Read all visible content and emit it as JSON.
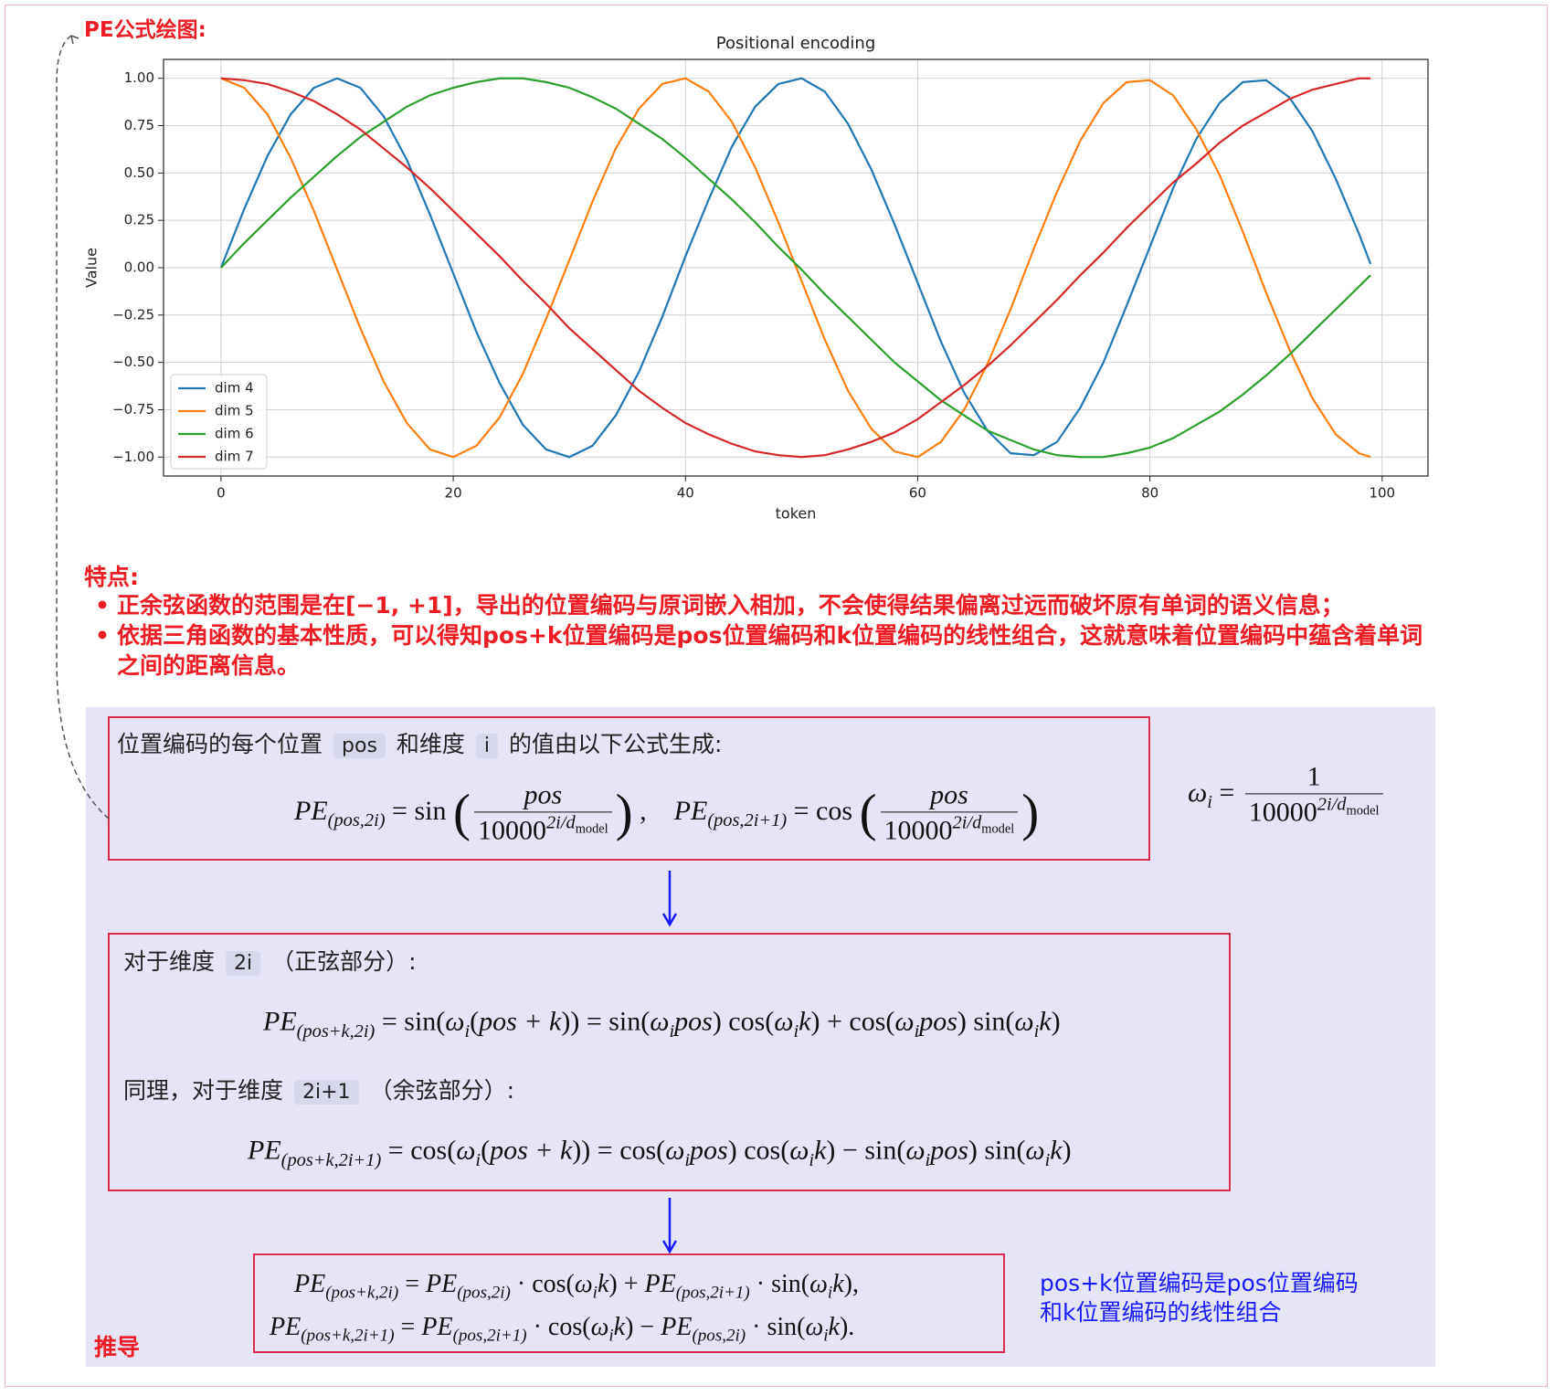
{
  "header": {
    "title": "PE公式绘图:"
  },
  "chart_data": {
    "type": "line",
    "title": "Positional encoding",
    "xlabel": "token",
    "ylabel": "Value",
    "x": [
      0,
      2,
      4,
      6,
      8,
      10,
      12,
      14,
      16,
      18,
      20,
      22,
      24,
      26,
      28,
      30,
      32,
      34,
      36,
      38,
      40,
      42,
      44,
      46,
      48,
      50,
      52,
      54,
      56,
      58,
      60,
      62,
      64,
      66,
      68,
      70,
      72,
      74,
      76,
      78,
      80,
      82,
      84,
      86,
      88,
      90,
      92,
      94,
      96,
      98,
      99
    ],
    "series": [
      {
        "name": "dim 4",
        "color": "#1f77b4",
        "values": [
          0,
          0.31,
          0.59,
          0.81,
          0.95,
          1.0,
          0.95,
          0.8,
          0.57,
          0.28,
          -0.03,
          -0.34,
          -0.61,
          -0.83,
          -0.96,
          -1.0,
          -0.94,
          -0.78,
          -0.55,
          -0.26,
          0.06,
          0.36,
          0.64,
          0.85,
          0.97,
          1.0,
          0.93,
          0.76,
          0.52,
          0.23,
          -0.08,
          -0.39,
          -0.66,
          -0.86,
          -0.98,
          -0.99,
          -0.92,
          -0.74,
          -0.5,
          -0.2,
          0.11,
          0.42,
          0.68,
          0.87,
          0.98,
          0.99,
          0.9,
          0.72,
          0.47,
          0.18,
          0.02
        ]
      },
      {
        "name": "dim 5",
        "color": "#ff7f0e",
        "values": [
          1,
          0.95,
          0.81,
          0.58,
          0.3,
          -0.01,
          -0.32,
          -0.6,
          -0.82,
          -0.96,
          -1.0,
          -0.94,
          -0.79,
          -0.56,
          -0.27,
          0.04,
          0.35,
          0.63,
          0.84,
          0.97,
          1.0,
          0.93,
          0.77,
          0.53,
          0.24,
          -0.07,
          -0.38,
          -0.65,
          -0.85,
          -0.97,
          -1.0,
          -0.92,
          -0.75,
          -0.51,
          -0.22,
          0.1,
          0.4,
          0.67,
          0.87,
          0.98,
          0.99,
          0.91,
          0.73,
          0.49,
          0.19,
          -0.13,
          -0.43,
          -0.69,
          -0.88,
          -0.98,
          -1.0
        ]
      },
      {
        "name": "dim 6",
        "color": "#2ca02c",
        "values": [
          0,
          0.13,
          0.25,
          0.37,
          0.48,
          0.59,
          0.69,
          0.77,
          0.85,
          0.91,
          0.95,
          0.98,
          1.0,
          1.0,
          0.98,
          0.95,
          0.9,
          0.84,
          0.76,
          0.68,
          0.58,
          0.47,
          0.36,
          0.24,
          0.11,
          -0.01,
          -0.14,
          -0.26,
          -0.38,
          -0.5,
          -0.6,
          -0.7,
          -0.78,
          -0.86,
          -0.91,
          -0.96,
          -0.99,
          -1.0,
          -1.0,
          -0.98,
          -0.95,
          -0.9,
          -0.83,
          -0.76,
          -0.67,
          -0.57,
          -0.46,
          -0.34,
          -0.22,
          -0.1,
          -0.04
        ]
      },
      {
        "name": "dim 7",
        "color": "#d62728",
        "values": [
          1,
          0.99,
          0.97,
          0.93,
          0.88,
          0.81,
          0.73,
          0.63,
          0.53,
          0.42,
          0.3,
          0.18,
          0.06,
          -0.07,
          -0.19,
          -0.32,
          -0.43,
          -0.54,
          -0.65,
          -0.74,
          -0.82,
          -0.88,
          -0.93,
          -0.97,
          -0.99,
          -1.0,
          -0.99,
          -0.96,
          -0.92,
          -0.87,
          -0.8,
          -0.71,
          -0.62,
          -0.52,
          -0.41,
          -0.29,
          -0.17,
          -0.04,
          0.08,
          0.21,
          0.33,
          0.45,
          0.55,
          0.66,
          0.75,
          0.82,
          0.89,
          0.94,
          0.97,
          1.0,
          1.0
        ]
      }
    ],
    "xlim": [
      -4.95,
      103.95
    ],
    "ylim": [
      -1.1,
      1.1
    ],
    "xticks": [
      0,
      20,
      40,
      60,
      80,
      100
    ],
    "yticks": [
      {
        "value": -1,
        "label": "−1.00"
      },
      {
        "value": -0.75,
        "label": "−0.75"
      },
      {
        "value": -0.5,
        "label": "−0.50"
      },
      {
        "value": -0.25,
        "label": "−0.25"
      },
      {
        "value": 0,
        "label": "0.00"
      },
      {
        "value": 0.25,
        "label": "0.25"
      },
      {
        "value": 0.5,
        "label": "0.50"
      },
      {
        "value": 0.75,
        "label": "0.75"
      },
      {
        "value": 1,
        "label": "1.00"
      }
    ],
    "grid": true,
    "legend": "lower left"
  },
  "features": {
    "title": "特点:",
    "items": [
      "正余弦函数的范围是在[−1, +1]，导出的位置编码与原词嵌入相加，不会使得结果偏离过远而破坏原有单词的语义信息；",
      "依据三角函数的基本性质，可以得知pos+k位置编码是pos位置编码和k位置编码的线性组合，这就意味着位置编码中蕴含着单词之间的距离信息。"
    ]
  },
  "box1": {
    "intro": [
      "位置编码的每个位置",
      "pos",
      "和维度",
      "i",
      "的值由以下公式生成:"
    ],
    "formula": [
      {
        "t": "PE",
        "k": "it"
      },
      {
        "t": "(pos,2i)",
        "k": "sub"
      },
      {
        "t": " = sin ",
        "k": "rm"
      },
      {
        "t": "(",
        "k": "big"
      },
      {
        "num": [
          {
            "t": "pos",
            "k": "it"
          }
        ],
        "den": [
          {
            "t": "10000",
            "k": "rm"
          },
          {
            "t": "2i/d",
            "k": "sup"
          },
          {
            "t": "model",
            "k": "supsub"
          }
        ]
      },
      {
        "t": ")",
        "k": "big"
      },
      {
        "t": " ,    ",
        "k": "rm"
      },
      {
        "t": "PE",
        "k": "it"
      },
      {
        "t": "(pos,2i+1)",
        "k": "sub"
      },
      {
        "t": " = cos ",
        "k": "rm"
      },
      {
        "t": "(",
        "k": "big"
      },
      {
        "num": [
          {
            "t": "pos",
            "k": "it"
          }
        ],
        "den": [
          {
            "t": "10000",
            "k": "rm"
          },
          {
            "t": "2i/d",
            "k": "sup"
          },
          {
            "t": "model",
            "k": "supsub"
          }
        ]
      },
      {
        "t": ")",
        "k": "big"
      }
    ]
  },
  "omega": [
    {
      "t": "ω",
      "k": "it"
    },
    {
      "t": "i",
      "k": "sub"
    },
    {
      "t": " = ",
      "k": "rm"
    },
    {
      "num": [
        {
          "t": "1",
          "k": "rm"
        }
      ],
      "den": [
        {
          "t": "10000",
          "k": "rm"
        },
        {
          "t": "2i/d",
          "k": "sup"
        },
        {
          "t": "model",
          "k": "supsub"
        }
      ]
    }
  ],
  "box2": {
    "sin_intro": [
      "对于维度",
      "2i",
      "（正弦部分）:"
    ],
    "sin_formula": [
      {
        "t": "PE",
        "k": "it"
      },
      {
        "t": "(pos+k,2i)",
        "k": "sub"
      },
      {
        "t": " = sin(",
        "k": "rm"
      },
      {
        "t": "ω",
        "k": "it"
      },
      {
        "t": "i",
        "k": "sub"
      },
      {
        "t": "(",
        "k": "rm"
      },
      {
        "t": "pos + k",
        "k": "it"
      },
      {
        "t": ")) = sin(",
        "k": "rm"
      },
      {
        "t": "ω",
        "k": "it"
      },
      {
        "t": "i",
        "k": "sub"
      },
      {
        "t": "pos",
        "k": "it"
      },
      {
        "t": ") cos(",
        "k": "rm"
      },
      {
        "t": "ω",
        "k": "it"
      },
      {
        "t": "i",
        "k": "sub"
      },
      {
        "t": "k",
        "k": "it"
      },
      {
        "t": ") + cos(",
        "k": "rm"
      },
      {
        "t": "ω",
        "k": "it"
      },
      {
        "t": "i",
        "k": "sub"
      },
      {
        "t": "pos",
        "k": "it"
      },
      {
        "t": ") sin(",
        "k": "rm"
      },
      {
        "t": "ω",
        "k": "it"
      },
      {
        "t": "i",
        "k": "sub"
      },
      {
        "t": "k",
        "k": "it"
      },
      {
        "t": ")",
        "k": "rm"
      }
    ],
    "cos_intro": [
      "同理，对于维度",
      "2i+1",
      "（余弦部分）:"
    ],
    "cos_formula": [
      {
        "t": "PE",
        "k": "it"
      },
      {
        "t": "(pos+k,2i+1)",
        "k": "sub"
      },
      {
        "t": " = cos(",
        "k": "rm"
      },
      {
        "t": "ω",
        "k": "it"
      },
      {
        "t": "i",
        "k": "sub"
      },
      {
        "t": "(",
        "k": "rm"
      },
      {
        "t": "pos + k",
        "k": "it"
      },
      {
        "t": ")) = cos(",
        "k": "rm"
      },
      {
        "t": "ω",
        "k": "it"
      },
      {
        "t": "i",
        "k": "sub"
      },
      {
        "t": "pos",
        "k": "it"
      },
      {
        "t": ") cos(",
        "k": "rm"
      },
      {
        "t": "ω",
        "k": "it"
      },
      {
        "t": "i",
        "k": "sub"
      },
      {
        "t": "k",
        "k": "it"
      },
      {
        "t": ") − sin(",
        "k": "rm"
      },
      {
        "t": "ω",
        "k": "it"
      },
      {
        "t": "i",
        "k": "sub"
      },
      {
        "t": "pos",
        "k": "it"
      },
      {
        "t": ") sin(",
        "k": "rm"
      },
      {
        "t": "ω",
        "k": "it"
      },
      {
        "t": "i",
        "k": "sub"
      },
      {
        "t": "k",
        "k": "it"
      },
      {
        "t": ")",
        "k": "rm"
      }
    ]
  },
  "box3": {
    "formulas": [
      [
        {
          "t": "PE",
          "k": "it"
        },
        {
          "t": "(pos+k,2i)",
          "k": "sub"
        },
        {
          "t": " = ",
          "k": "rm"
        },
        {
          "t": "PE",
          "k": "it"
        },
        {
          "t": "(pos,2i)",
          "k": "sub"
        },
        {
          "t": " · cos(",
          "k": "rm"
        },
        {
          "t": "ω",
          "k": "it"
        },
        {
          "t": "i",
          "k": "sub"
        },
        {
          "t": "k",
          "k": "it"
        },
        {
          "t": ") + ",
          "k": "rm"
        },
        {
          "t": "PE",
          "k": "it"
        },
        {
          "t": "(pos,2i+1)",
          "k": "sub"
        },
        {
          "t": " · sin(",
          "k": "rm"
        },
        {
          "t": "ω",
          "k": "it"
        },
        {
          "t": "i",
          "k": "sub"
        },
        {
          "t": "k",
          "k": "it"
        },
        {
          "t": "),",
          "k": "rm"
        }
      ],
      [
        {
          "t": "PE",
          "k": "it"
        },
        {
          "t": "(pos+k,2i+1)",
          "k": "sub"
        },
        {
          "t": " = ",
          "k": "rm"
        },
        {
          "t": "PE",
          "k": "it"
        },
        {
          "t": "(pos,2i+1)",
          "k": "sub"
        },
        {
          "t": " · cos(",
          "k": "rm"
        },
        {
          "t": "ω",
          "k": "it"
        },
        {
          "t": "i",
          "k": "sub"
        },
        {
          "t": "k",
          "k": "it"
        },
        {
          "t": ") − ",
          "k": "rm"
        },
        {
          "t": "PE",
          "k": "it"
        },
        {
          "t": "(pos,2i)",
          "k": "sub"
        },
        {
          "t": " · sin(",
          "k": "rm"
        },
        {
          "t": "ω",
          "k": "it"
        },
        {
          "t": "i",
          "k": "sub"
        },
        {
          "t": "k",
          "k": "it"
        },
        {
          "t": ").",
          "k": "rm"
        }
      ]
    ]
  },
  "note": [
    "pos+k位置编码是pos位置编码",
    "和k位置编码的线性组合"
  ],
  "label": "推导"
}
